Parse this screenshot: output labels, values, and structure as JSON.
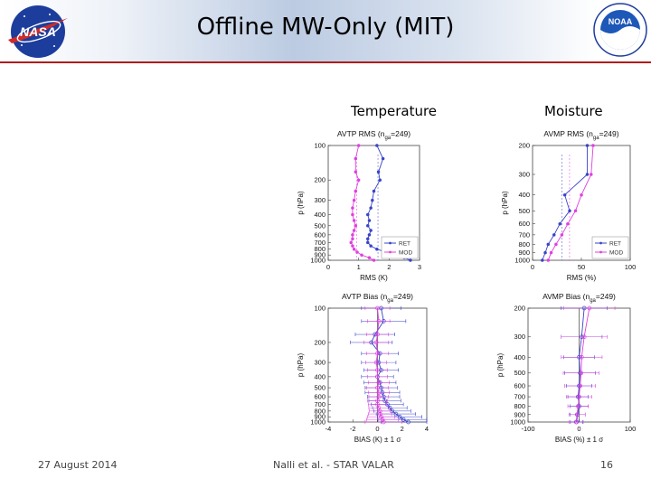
{
  "slide": {
    "title": "Offline MW-Only (MIT)",
    "section_left": "Temperature",
    "section_right": "Moisture",
    "footer_date": "27 August 2014",
    "footer_author": "Nalli et al. - STAR VALAR",
    "footer_page": "16",
    "logo_left_text": "NASA",
    "logo_right_text": "NOAA"
  },
  "colors": {
    "ret": "#3a44c8",
    "mod": "#e040e0",
    "accent": "#b01c1c"
  },
  "legend": {
    "ret": "RET",
    "mod": "MOD"
  },
  "chart_data": [
    {
      "type": "line",
      "title_prefix": "AVTP RMS (n",
      "title_sub": "ga",
      "title_suffix": "=249)",
      "xlabel": "RMS (K)",
      "ylabel": "p (hPa)",
      "xlim": [
        0,
        3
      ],
      "xticks": [
        0,
        1,
        2,
        3
      ],
      "ylim": [
        100,
        1000
      ],
      "yscale": "log",
      "yticks": [
        100,
        200,
        300,
        400,
        500,
        600,
        700,
        800,
        900,
        1000
      ],
      "legend_position": "lower-right",
      "p": [
        100,
        130,
        170,
        200,
        250,
        300,
        350,
        400,
        450,
        500,
        550,
        600,
        650,
        700,
        750,
        800,
        850,
        900,
        950,
        1000
      ],
      "series": [
        {
          "name": "RET",
          "values": [
            1.6,
            1.8,
            1.65,
            1.7,
            1.5,
            1.45,
            1.4,
            1.3,
            1.35,
            1.3,
            1.4,
            1.35,
            1.3,
            1.3,
            1.4,
            1.6,
            1.9,
            2.2,
            2.5,
            2.7
          ]
        },
        {
          "name": "MOD",
          "values": [
            1.0,
            0.9,
            0.9,
            1.0,
            0.9,
            0.85,
            0.8,
            0.8,
            0.85,
            0.9,
            0.85,
            0.8,
            0.8,
            0.75,
            0.8,
            0.85,
            0.95,
            1.1,
            1.35,
            1.5
          ]
        }
      ]
    },
    {
      "type": "line",
      "title_prefix": "AVMP RMS (n",
      "title_sub": "ga",
      "title_suffix": "=249)",
      "xlabel": "RMS (%)",
      "ylabel": "p (hPa)",
      "xlim": [
        0,
        100
      ],
      "xticks": [
        0,
        50,
        100
      ],
      "ylim": [
        200,
        1000
      ],
      "yscale": "log",
      "yticks": [
        200,
        300,
        400,
        500,
        600,
        700,
        800,
        900,
        1000
      ],
      "legend_position": "lower-right",
      "p": [
        200,
        300,
        400,
        500,
        600,
        700,
        800,
        900,
        1000
      ],
      "series": [
        {
          "name": "RET",
          "values": [
            56,
            56,
            33,
            38,
            28,
            22,
            16,
            13,
            10
          ]
        },
        {
          "name": "MOD",
          "values": [
            62,
            60,
            50,
            44,
            36,
            30,
            24,
            19,
            16
          ]
        }
      ]
    },
    {
      "type": "line",
      "title_prefix": "AVTP Bias (n",
      "title_sub": "ga",
      "title_suffix": "=249)",
      "xlabel": "BIAS (K) ± 1 σ",
      "ylabel": "p (hPa)",
      "xlim": [
        -4,
        4
      ],
      "xticks": [
        -4,
        -2,
        0,
        2,
        4
      ],
      "ylim": [
        100,
        1000
      ],
      "yscale": "log",
      "yticks": [
        100,
        200,
        300,
        400,
        500,
        600,
        700,
        800,
        900,
        1000
      ],
      "p": [
        100,
        130,
        170,
        200,
        250,
        300,
        350,
        400,
        450,
        500,
        550,
        600,
        650,
        700,
        750,
        800,
        850,
        900,
        950,
        1000
      ],
      "series": [
        {
          "name": "RET",
          "values": [
            0.3,
            0.5,
            -0.2,
            -0.5,
            0.2,
            0.1,
            0.3,
            0.0,
            0.2,
            0.3,
            0.4,
            0.5,
            0.6,
            0.8,
            1.0,
            1.2,
            1.5,
            1.8,
            2.1,
            2.5
          ],
          "sigma": [
            1.6,
            1.8,
            1.6,
            1.7,
            1.5,
            1.4,
            1.4,
            1.3,
            1.3,
            1.3,
            1.4,
            1.3,
            1.3,
            1.3,
            1.4,
            1.5,
            1.6,
            1.8,
            2.0,
            2.2
          ]
        },
        {
          "name": "MOD",
          "values": [
            0.0,
            0.1,
            0.0,
            -0.1,
            0.0,
            -0.1,
            0.0,
            0.0,
            0.1,
            0.0,
            0.1,
            0.1,
            0.0,
            0.0,
            0.1,
            0.2,
            0.2,
            0.3,
            0.4,
            0.5
          ],
          "sigma": [
            1.0,
            0.9,
            0.9,
            1.0,
            0.9,
            0.85,
            0.8,
            0.8,
            0.85,
            0.9,
            0.85,
            0.8,
            0.8,
            0.75,
            0.8,
            0.85,
            0.95,
            1.1,
            1.3,
            1.5
          ]
        }
      ]
    },
    {
      "type": "line",
      "title_prefix": "AVMP Bias (n",
      "title_sub": "ga",
      "title_suffix": "=249)",
      "xlabel": "BIAS (%) ± 1 σ",
      "ylabel": "p (hPa)",
      "xlim": [
        -100,
        100
      ],
      "xticks": [
        -100,
        0,
        100
      ],
      "ylim": [
        200,
        1000
      ],
      "yscale": "log",
      "yticks": [
        200,
        300,
        400,
        500,
        600,
        700,
        800,
        900,
        1000
      ],
      "p": [
        200,
        300,
        400,
        500,
        600,
        700,
        800,
        900,
        1000
      ],
      "series": [
        {
          "name": "RET",
          "values": [
            10,
            5,
            0,
            2,
            0,
            -2,
            0,
            -3,
            -5
          ],
          "sigma": [
            45,
            40,
            30,
            30,
            25,
            20,
            18,
            15,
            12
          ]
        },
        {
          "name": "MOD",
          "values": [
            20,
            10,
            5,
            4,
            2,
            0,
            -2,
            -4,
            -6
          ],
          "sigma": [
            50,
            45,
            40,
            35,
            30,
            25,
            20,
            16,
            14
          ]
        }
      ]
    }
  ]
}
